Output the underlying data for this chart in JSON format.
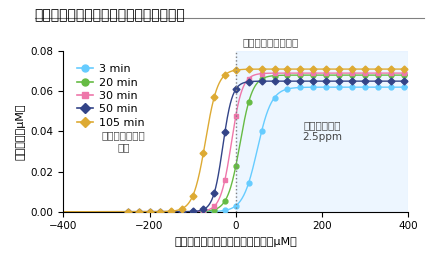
{
  "title": "バイオフィルムに対する塩素消毒の効果",
  "xlabel": "バイオフィルム表面からの距離（μM）",
  "ylabel": "塩素濃度（μM）",
  "xlim": [
    -400,
    400
  ],
  "ylim": [
    0,
    0.08
  ],
  "yticks": [
    0.0,
    0.02,
    0.04,
    0.06,
    0.08
  ],
  "xticks": [
    -400,
    -200,
    0,
    200,
    400
  ],
  "background_color": "#ffffff",
  "plot_bg_right": "#ddeeff",
  "series": [
    {
      "label": "3 min",
      "color": "#66ccff",
      "marker": "o",
      "mid": 50,
      "k": 0.06,
      "ymax": 0.062
    },
    {
      "label": "20 min",
      "color": "#66bb44",
      "marker": "o",
      "mid": 10,
      "k": 0.07,
      "ymax": 0.068
    },
    {
      "label": "30 min",
      "color": "#ee77aa",
      "marker": "s",
      "mid": -10,
      "k": 0.08,
      "ymax": 0.069
    },
    {
      "label": "50 min",
      "color": "#334488",
      "marker": "D",
      "mid": -30,
      "k": 0.09,
      "ymax": 0.065
    },
    {
      "label": "105 min",
      "color": "#ddaa33",
      "marker": "D",
      "mid": -70,
      "k": 0.07,
      "ymax": 0.071
    }
  ],
  "annot_biofilm_surface": "バイオフィルム表面",
  "annot_inner": "バイオフィルム\n内部",
  "annot_solution": "遊離塩素溶液\n2.5ppm",
  "title_fontsize": 10,
  "label_fontsize": 8,
  "tick_fontsize": 7.5,
  "legend_fontsize": 8
}
